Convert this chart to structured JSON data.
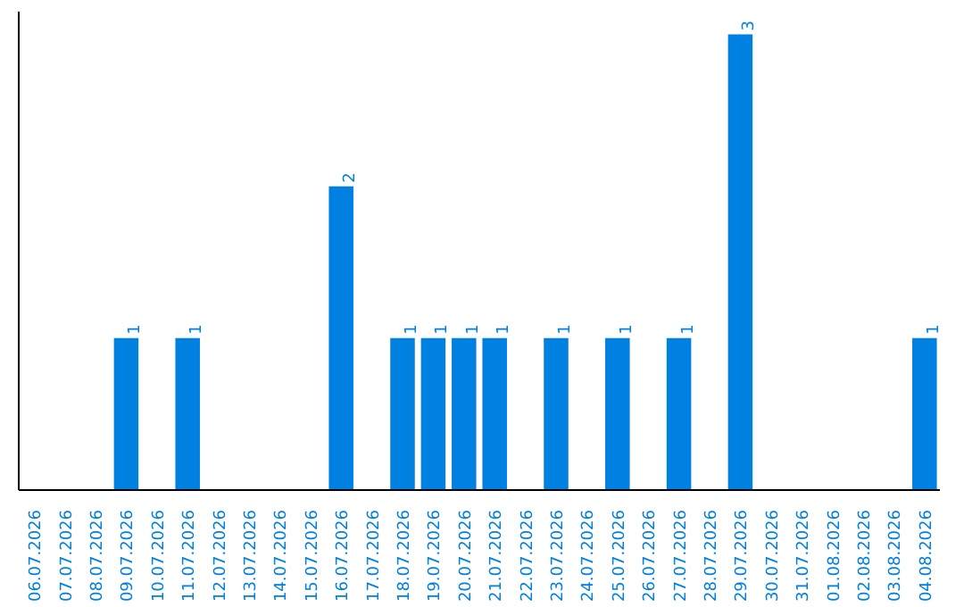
{
  "chart_data": {
    "type": "bar",
    "categories": [
      "06.07.2026",
      "07.07.2026",
      "08.07.2026",
      "09.07.2026",
      "10.07.2026",
      "11.07.2026",
      "12.07.2026",
      "13.07.2026",
      "14.07.2026",
      "15.07.2026",
      "16.07.2026",
      "17.07.2026",
      "18.07.2026",
      "19.07.2026",
      "20.07.2026",
      "21.07.2026",
      "22.07.2026",
      "23.07.2026",
      "24.07.2026",
      "25.07.2026",
      "26.07.2026",
      "27.07.2026",
      "28.07.2026",
      "29.07.2026",
      "30.07.2026",
      "31.07.2026",
      "01.08.2026",
      "02.08.2026",
      "03.08.2026",
      "04.08.2026"
    ],
    "values": [
      0,
      0,
      0,
      1,
      0,
      1,
      0,
      0,
      0,
      0,
      2,
      0,
      1,
      1,
      1,
      1,
      0,
      1,
      0,
      1,
      0,
      1,
      0,
      3,
      0,
      0,
      0,
      0,
      0,
      1
    ],
    "value_labels": [
      null,
      null,
      null,
      "1",
      null,
      "1",
      null,
      null,
      null,
      null,
      "2",
      null,
      "1",
      "1",
      "1",
      "1",
      null,
      "1",
      null,
      "1",
      null,
      "1",
      null,
      "3",
      null,
      null,
      null,
      null,
      null,
      "1"
    ],
    "color": "#0080e0",
    "grid": false
  }
}
